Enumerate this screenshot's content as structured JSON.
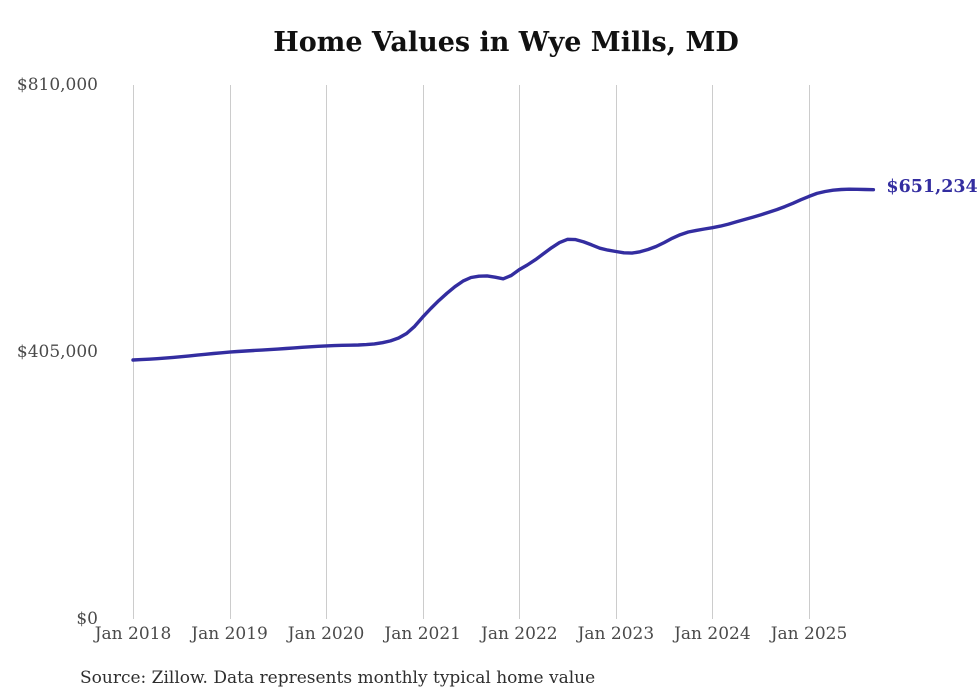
{
  "chart_data": {
    "type": "line",
    "title": "Home Values in Wye Mills, MD",
    "xlabel": "",
    "ylabel": "",
    "x_tick_labels": [
      "Jan 2018",
      "Jan 2019",
      "Jan 2020",
      "Jan 2021",
      "Jan 2022",
      "Jan 2023",
      "Jan 2024",
      "Jan 2025"
    ],
    "y_tick_labels": [
      "$810,000",
      "$405,000",
      "$0"
    ],
    "y_ticks": [
      810000,
      405000,
      0
    ],
    "ylim": [
      0,
      810000
    ],
    "grid": "vertical-only",
    "frequency": "monthly",
    "x_range": {
      "start": "Jan 2018",
      "end": "Sep 2025"
    },
    "end_label": "$651,234",
    "final_value": 651234,
    "series": [
      {
        "name": "Typical home value",
        "color": "#332da0",
        "start_month": "2018-01",
        "values": [
          392800,
          393400,
          394100,
          394900,
          395800,
          396800,
          397900,
          399100,
          400300,
          401500,
          402700,
          403800,
          404900,
          405700,
          406500,
          407200,
          407900,
          408600,
          409400,
          410300,
          411200,
          412100,
          412900,
          413600,
          414200,
          414700,
          415100,
          415300,
          415600,
          416200,
          417300,
          419100,
          421800,
          426300,
          433000,
          444000,
          458000,
          471000,
          483000,
          494000,
          504000,
          512500,
          518000,
          520000,
          520500,
          518500,
          516000,
          521000,
          530000,
          537000,
          545000,
          554000,
          563000,
          571000,
          576000,
          575500,
          572000,
          567500,
          562500,
          559500,
          557500,
          555500,
          555000,
          557000,
          560500,
          565000,
          571000,
          577500,
          583000,
          587000,
          589500,
          591500,
          593500,
          596000,
          599000,
          602500,
          606000,
          609500,
          613000,
          617000,
          621000,
          625500,
          630500,
          636000,
          641000,
          645500,
          648500,
          650500,
          651500,
          652000,
          651800,
          651500,
          651234
        ]
      }
    ]
  },
  "source_note": "Source: Zillow. Data represents monthly typical home value",
  "colors": {
    "accent": "#332da0",
    "gridline": "#cccccc",
    "axis_text": "#4a4a4a",
    "title_text": "#111111",
    "source_text": "#2e2e2e",
    "background": "#ffffff"
  }
}
